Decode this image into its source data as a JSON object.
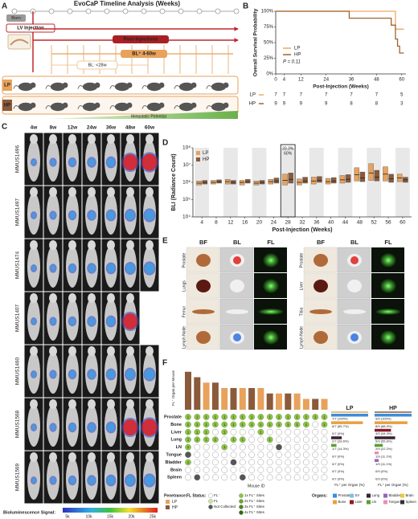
{
  "panel_labels": [
    "A",
    "B",
    "C",
    "D",
    "E",
    "F"
  ],
  "panel_a": {
    "title": "EvoCaP Timeline Analysis (Weeks)",
    "born": "Born",
    "injection": "LV Injection",
    "post": "Post-Injections",
    "bl_plus": "BL⁺ 4-60w",
    "bl_minus": "BL: <28w",
    "groups": [
      "LP",
      "HP"
    ],
    "gradient": "Metastatic Potential"
  },
  "chart_data": [
    {
      "type": "step",
      "ylabel": "Overall Survival Probability",
      "xlabel": "Post-Injection (Weeks)",
      "annotation": "P = 0.11",
      "xlim": [
        0,
        62
      ],
      "ylim": [
        0,
        100
      ],
      "xticks": [
        0,
        4,
        12,
        24,
        36,
        48,
        60
      ],
      "yticks": [
        {
          "value": 0,
          "label": "0%"
        },
        {
          "value": 25,
          "label": "25%"
        },
        {
          "value": 50,
          "label": "50%"
        },
        {
          "value": 75,
          "label": "75%"
        },
        {
          "value": 100,
          "label": "100%"
        }
      ],
      "legend_corner": "lower left",
      "series": [
        {
          "name": "LP",
          "color": "#f0a860",
          "x": [
            0,
            57,
            61
          ],
          "values": [
            100,
            71.4,
            71.4
          ]
        },
        {
          "name": "HP",
          "color": "#9c6530",
          "x": [
            0,
            35,
            55,
            57,
            58,
            59,
            61
          ],
          "values": [
            100,
            88.9,
            77.8,
            55.6,
            44.4,
            33.3,
            33.3
          ]
        }
      ],
      "risk_table": {
        "rows": [
          {
            "name": "LP",
            "values": [
              7,
              7,
              7,
              7,
              7,
              7,
              5
            ]
          },
          {
            "name": "HP",
            "values": [
              9,
              9,
              9,
              9,
              8,
              8,
              3
            ]
          }
        ]
      }
    },
    {
      "type": "box",
      "ylabel": "BLI (Radiance Count)",
      "xlabel": "Post-Injection (Weeks)",
      "log_y": true,
      "x": [
        4,
        8,
        12,
        16,
        20,
        24,
        28,
        32,
        36,
        40,
        44,
        48,
        52,
        56,
        60
      ],
      "xlim": [
        1.5,
        62.5
      ],
      "ylim": [
        10000,
        100000000
      ],
      "yticks": [
        {
          "value": 10000,
          "label": "10⁴"
        },
        {
          "value": 100000,
          "label": "10⁵"
        },
        {
          "value": 1000000,
          "label": "10⁶"
        },
        {
          "value": 10000000,
          "label": "10⁷"
        },
        {
          "value": 100000000,
          "label": "10⁸"
        }
      ],
      "xticks": [
        4,
        8,
        12,
        16,
        20,
        24,
        28,
        32,
        36,
        40,
        44,
        48,
        52,
        56,
        60
      ],
      "legend_corner": "upper left",
      "series": [
        {
          "name": "LP",
          "color": "#e8a25c",
          "q1": [
            700000.0,
            800000.0,
            800000.0,
            700000.0,
            700000.0,
            800000.0,
            700000.0,
            700000.0,
            800000.0,
            800000.0,
            900000.0,
            1200000.0,
            1300000.0,
            1200000.0,
            1100000.0
          ],
          "median": [
            900000.0,
            1000000.0,
            1100000.0,
            1000000.0,
            900000.0,
            1100000.0,
            1300000.0,
            1000000.0,
            1200000.0,
            1100000.0,
            1400000.0,
            2800000.0,
            3500000.0,
            3000000.0,
            1800000.0
          ],
          "q3": [
            1200000.0,
            1300000.0,
            1500000.0,
            1300000.0,
            1200000.0,
            1500000.0,
            3000000.0,
            1600000.0,
            2000000.0,
            1700000.0,
            2500000.0,
            7000000.0,
            12000000.0,
            8000000.0,
            3000000.0
          ]
        },
        {
          "name": "HP",
          "color": "#8a5a3a",
          "q1": [
            800000.0,
            900000.0,
            800000.0,
            900000.0,
            800000.0,
            900000.0,
            900000.0,
            900000.0,
            1000000.0,
            900000.0,
            1000000.0,
            1100000.0,
            1200000.0,
            1000000.0,
            1000000.0
          ],
          "median": [
            1000000.0,
            1100000.0,
            1000000.0,
            1100000.0,
            1000000.0,
            1200000.0,
            1500000.0,
            1200000.0,
            1300000.0,
            1200000.0,
            1500000.0,
            1800000.0,
            2000000.0,
            1600000.0,
            1400000.0
          ],
          "q3": [
            1300000.0,
            1400000.0,
            1300000.0,
            1500000.0,
            1300000.0,
            1800000.0,
            3500000.0,
            2000000.0,
            2200000.0,
            1900000.0,
            2800000.0,
            4000000.0,
            5000000.0,
            3000000.0,
            2000000.0
          ]
        }
      ],
      "highlight": {
        "x": 28,
        "labels": [
          "33.3%",
          "60%"
        ]
      }
    }
  ],
  "panel_c": {
    "columns": [
      "4w",
      "8w",
      "12w",
      "24w",
      "36w",
      "48w",
      "60w"
    ],
    "mice": [
      {
        "id": "MMUS1496",
        "group": "LP"
      },
      {
        "id": "MMUS1497",
        "group": "LP"
      },
      {
        "id": "MMUS1474",
        "group": "LP"
      },
      {
        "id": "MMUS1407",
        "group": "HP"
      },
      {
        "id": "MMUS1460",
        "group": "HP"
      },
      {
        "id": "MMUS1568",
        "group": "HP"
      },
      {
        "id": "MMUS1569",
        "group": "HP"
      }
    ],
    "group_colors": {
      "LP": "#e89a4a",
      "HP": "#666666"
    },
    "colorbar": {
      "title": "Bioluminescence Signal:",
      "labels": [
        "5k",
        "10k",
        "15k",
        "20k",
        "25k"
      ]
    }
  },
  "panel_e": [
    {
      "headers": [
        "BF",
        "BL",
        "FL"
      ],
      "organs": [
        "Prostate",
        "Lungs",
        "Femur",
        "Lymph Node"
      ]
    },
    {
      "headers": [
        "BF",
        "BL",
        "FL"
      ],
      "organs": [
        "Prostate",
        "Liver",
        "Tibia",
        "Lymph Node"
      ]
    }
  ],
  "panel_f": {
    "ylabel": "FL⁺ Organ per Mouse",
    "xlabel": "Mouse ID",
    "ylim": [
      0,
      8
    ],
    "counts": [
      7,
      6,
      5,
      5,
      4,
      4,
      4,
      4,
      4,
      3,
      3,
      3,
      3,
      2,
      2,
      2
    ],
    "groups": [
      "HP",
      "HP",
      "LP",
      "HP",
      "LP",
      "HP",
      "LP",
      "HP",
      "LP",
      "HP",
      "LP",
      "HP",
      "LP",
      "LP",
      "HP",
      "LP"
    ],
    "organs": [
      {
        "name": "Prostate",
        "color": "#3b8ed8"
      },
      {
        "name": "Bone",
        "color": "#e8a040"
      },
      {
        "name": "Liver",
        "color": "#8b1a2a"
      },
      {
        "name": "Lung",
        "color": "#3a2030"
      },
      {
        "name": "LN",
        "color": "#5aa030"
      },
      {
        "name": "Tongue",
        "color": "#e890b0"
      },
      {
        "name": "Bladder",
        "color": "#9a60c0"
      },
      {
        "name": "Brain",
        "color": "#e8c840"
      },
      {
        "name": "Spleen",
        "color": "#303030"
      }
    ],
    "matrix": [
      [
        1,
        1,
        1,
        1,
        1,
        1,
        1,
        1,
        1,
        1,
        1,
        1,
        1,
        1,
        1,
        1
      ],
      [
        1,
        1,
        1,
        1,
        1,
        1,
        1,
        1,
        1,
        1,
        1,
        1,
        1,
        1,
        0,
        1
      ],
      [
        1,
        1,
        1,
        0,
        1,
        0,
        0,
        0,
        1,
        0,
        0,
        0,
        0,
        0,
        0,
        0
      ],
      [
        1,
        1,
        1,
        1,
        0,
        1,
        1,
        0,
        0,
        1,
        0,
        0,
        0,
        0,
        0,
        0
      ],
      [
        1,
        0,
        0,
        0,
        1,
        0,
        0,
        0,
        0,
        0,
        -1,
        0,
        0,
        0,
        0,
        0
      ],
      [
        -1,
        0,
        0,
        0,
        0,
        0,
        0,
        0,
        0,
        0,
        0,
        0,
        0,
        0,
        0,
        0
      ],
      [
        1,
        0,
        0,
        0,
        0,
        -1,
        0,
        0,
        0,
        0,
        0,
        0,
        0,
        0,
        0,
        0
      ],
      [
        0,
        0,
        0,
        0,
        0,
        0,
        0,
        0,
        0,
        0,
        0,
        0,
        0,
        0,
        0,
        0
      ],
      [
        0,
        -1,
        0,
        0,
        0,
        0,
        -1,
        0,
        0,
        0,
        0,
        0,
        0,
        0,
        0,
        0
      ]
    ],
    "summary": [
      {
        "name": "LP",
        "axis_label": "FL⁺ per Organ (%)",
        "values": [
          100,
          85.7,
          0,
          28.6,
          14.3,
          0,
          0,
          0,
          0
        ],
        "value_labels": [
          "7/7 (100%)",
          "6/7 (85.7%)",
          "0/7 (0%)",
          "2/7 (28.6%)",
          "1/7 (14.3%)",
          "0/7 (0%)",
          "0/7 (0%)",
          "0/7 (0%)",
          "0/7 (0%)"
        ]
      },
      {
        "name": "HP",
        "axis_label": "FL⁺ per Organ (%)",
        "values": [
          100,
          88.9,
          44.4,
          55.6,
          22.2,
          11.1,
          11.1,
          0,
          0
        ],
        "value_labels": [
          "9/9 (100%)",
          "8/9 (88.9%)",
          "4/9 (44.4%)",
          "5/9 (55.6%)",
          "2/9 (22.2%)",
          "1/9 (11.1%)",
          "1/9 (11.1%)",
          "0/9 (0%)",
          "0/9 (0%)"
        ]
      }
    ],
    "legend": {
      "penetrance_title": "Penetrance:",
      "penetrance": [
        {
          "label": "LP",
          "color": "#e8a25c"
        },
        {
          "label": "HP",
          "color": "#8a5a3a"
        }
      ],
      "status_title": "FL Status:",
      "status": [
        {
          "label": "FL⁻",
          "color": "#ffffff"
        },
        {
          "label": "FL",
          "color": "#c8e6a0"
        },
        {
          "label": "Not Collected",
          "color": "#555555"
        },
        {
          "label": "1x FL⁺ Sites",
          "color": "#8cc63f"
        },
        {
          "label": "2x FL⁺ Sites",
          "color": "#6aa82a"
        },
        {
          "label": "3x FL⁺ Sites",
          "color": "#4a8a1c"
        },
        {
          "label": "4x FL⁺ Sites",
          "color": "#2e6a10"
        }
      ],
      "organs_title": "Organs:",
      "organs": [
        {
          "label": "Prostate",
          "color": "#3b8ed8"
        },
        {
          "label": "SV",
          "color": "#80c0e0"
        },
        {
          "label": "Lung",
          "color": "#3a2030"
        },
        {
          "label": "Bladder",
          "color": "#9a60c0"
        },
        {
          "label": "Brain",
          "color": "#e8c840"
        },
        {
          "label": "Bone",
          "color": "#e8a040"
        },
        {
          "label": "Liver",
          "color": "#8b1a2a"
        },
        {
          "label": "LN",
          "color": "#5aa030"
        },
        {
          "label": "Tongue",
          "color": "#e890b0"
        },
        {
          "label": "Spleen",
          "color": "#303030"
        }
      ]
    }
  }
}
